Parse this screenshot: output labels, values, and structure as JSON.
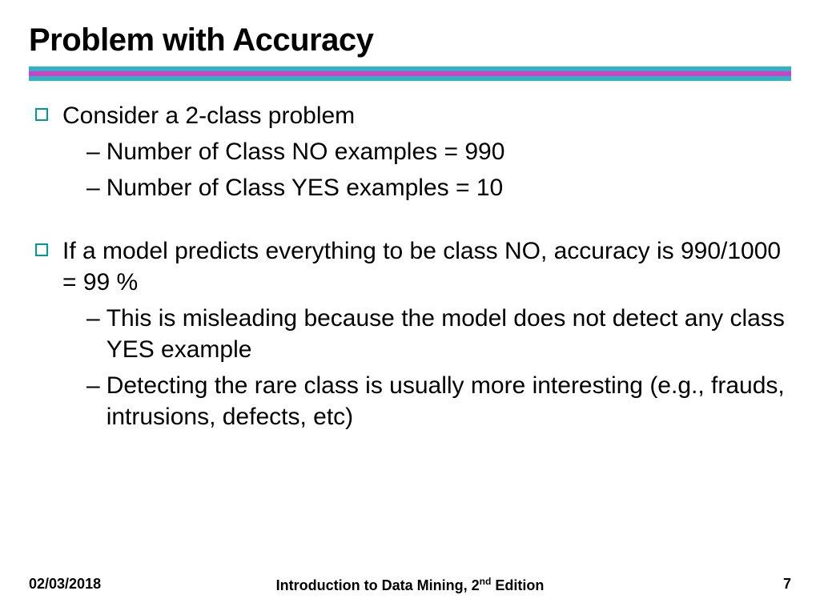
{
  "title": "Problem with Accuracy",
  "divider_colors": {
    "bar1": "#2cb4c6",
    "bar2": "#d63cc4",
    "bar3": "#2cb4c6"
  },
  "bullet_marker_color": "#009999",
  "content": {
    "b1": "Consider a 2-class problem",
    "b1_s1": "Number of Class NO examples = 990",
    "b1_s2": "Number of Class YES examples = 10",
    "b2": "If a model predicts everything to be class NO, accuracy is 990/1000 = 99 %",
    "b2_s1": "This is misleading because the model does not detect any class YES example",
    "b2_s2": "Detecting the rare class is usually more interesting (e.g., frauds, intrusions, defects, etc)"
  },
  "footer": {
    "date": "02/03/2018",
    "center_prefix": "Introduction to Data Mining, 2",
    "center_sup": "nd",
    "center_suffix": " Edition",
    "page": "7"
  },
  "typography": {
    "title_fontsize": 40,
    "body_fontsize": 30,
    "footer_fontsize": 18
  }
}
